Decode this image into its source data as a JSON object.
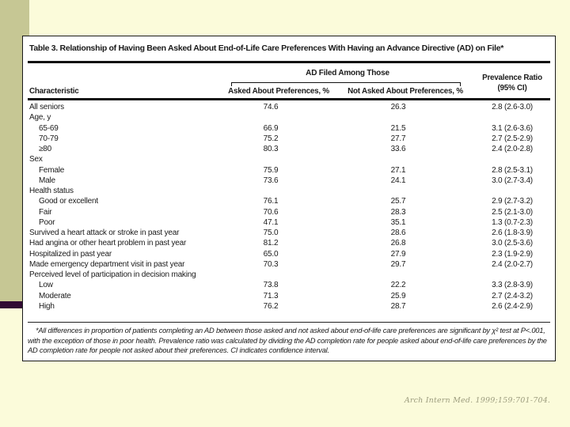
{
  "slide": {
    "background_color": "#FBFBDA",
    "accent_strip_color": "#C6C794",
    "accent_bar_color": "#310A33",
    "citation": "Arch Intern Med. 1999;159:701-704."
  },
  "table": {
    "title": "Table 3. Relationship of Having Been Asked About End-of-Life Care Preferences With Having an Advance Directive (AD) on File*",
    "spanner_header": "AD Filed Among Those",
    "columns": {
      "characteristic": "Characteristic",
      "asked": "Asked About Preferences, %",
      "not_asked": "Not Asked About Preferences, %",
      "prevalence_ratio_line1": "Prevalence Ratio",
      "prevalence_ratio_line2": "(95% CI)"
    },
    "rows": [
      {
        "label": "All seniors",
        "indent": 0,
        "asked": "74.6",
        "not_asked": "26.3",
        "pr": "2.8 (2.6-3.0)"
      },
      {
        "label": "Age, y",
        "indent": 0,
        "group": true
      },
      {
        "label": "65-69",
        "indent": 1,
        "asked": "66.9",
        "not_asked": "21.5",
        "pr": "3.1 (2.6-3.6)"
      },
      {
        "label": "70-79",
        "indent": 1,
        "asked": "75.2",
        "not_asked": "27.7",
        "pr": "2.7 (2.5-2.9)"
      },
      {
        "label": "≥80",
        "indent": 1,
        "asked": "80.3",
        "not_asked": "33.6",
        "pr": "2.4 (2.0-2.8)"
      },
      {
        "label": "Sex",
        "indent": 0,
        "group": true
      },
      {
        "label": "Female",
        "indent": 1,
        "asked": "75.9",
        "not_asked": "27.1",
        "pr": "2.8 (2.5-3.1)"
      },
      {
        "label": "Male",
        "indent": 1,
        "asked": "73.6",
        "not_asked": "24.1",
        "pr": "3.0 (2.7-3.4)"
      },
      {
        "label": "Health status",
        "indent": 0,
        "group": true
      },
      {
        "label": "Good or excellent",
        "indent": 1,
        "asked": "76.1",
        "not_asked": "25.7",
        "pr": "2.9 (2.7-3.2)"
      },
      {
        "label": "Fair",
        "indent": 1,
        "asked": "70.6",
        "not_asked": "28.3",
        "pr": "2.5 (2.1-3.0)"
      },
      {
        "label": "Poor",
        "indent": 1,
        "asked": "47.1",
        "not_asked": "35.1",
        "pr": "1.3 (0.7-2.3)"
      },
      {
        "label": "Survived a heart attack or stroke in past year",
        "indent": 0,
        "asked": "75.0",
        "not_asked": "28.6",
        "pr": "2.6 (1.8-3.9)"
      },
      {
        "label": "Had angina or other heart problem in past year",
        "indent": 0,
        "asked": "81.2",
        "not_asked": "26.8",
        "pr": "3.0 (2.5-3.6)"
      },
      {
        "label": "Hospitalized in past year",
        "indent": 0,
        "asked": "65.0",
        "not_asked": "27.9",
        "pr": "2.3 (1.9-2.9)"
      },
      {
        "label": "Made emergency department visit in past year",
        "indent": 0,
        "asked": "70.3",
        "not_asked": "29.7",
        "pr": "2.4 (2.0-2.7)"
      },
      {
        "label": "Perceived level of participation in decision making",
        "indent": 0,
        "group": true
      },
      {
        "label": "Low",
        "indent": 1,
        "asked": "73.8",
        "not_asked": "22.2",
        "pr": "3.3 (2.8-3.9)"
      },
      {
        "label": "Moderate",
        "indent": 1,
        "asked": "71.3",
        "not_asked": "25.9",
        "pr": "2.7 (2.4-3.2)"
      },
      {
        "label": "High",
        "indent": 1,
        "asked": "76.2",
        "not_asked": "28.7",
        "pr": "2.6 (2.4-2.9)"
      }
    ],
    "footnote": "*All differences in proportion of patients completing an AD between those asked and not asked about end-of-life care preferences are significant by χ² test at P<.001, with the exception of those in poor health. Prevalence ratio was calculated by dividing the AD completion rate for people asked about end-of-life care preferences by the AD completion rate for people not asked about their preferences. CI indicates confidence interval."
  }
}
